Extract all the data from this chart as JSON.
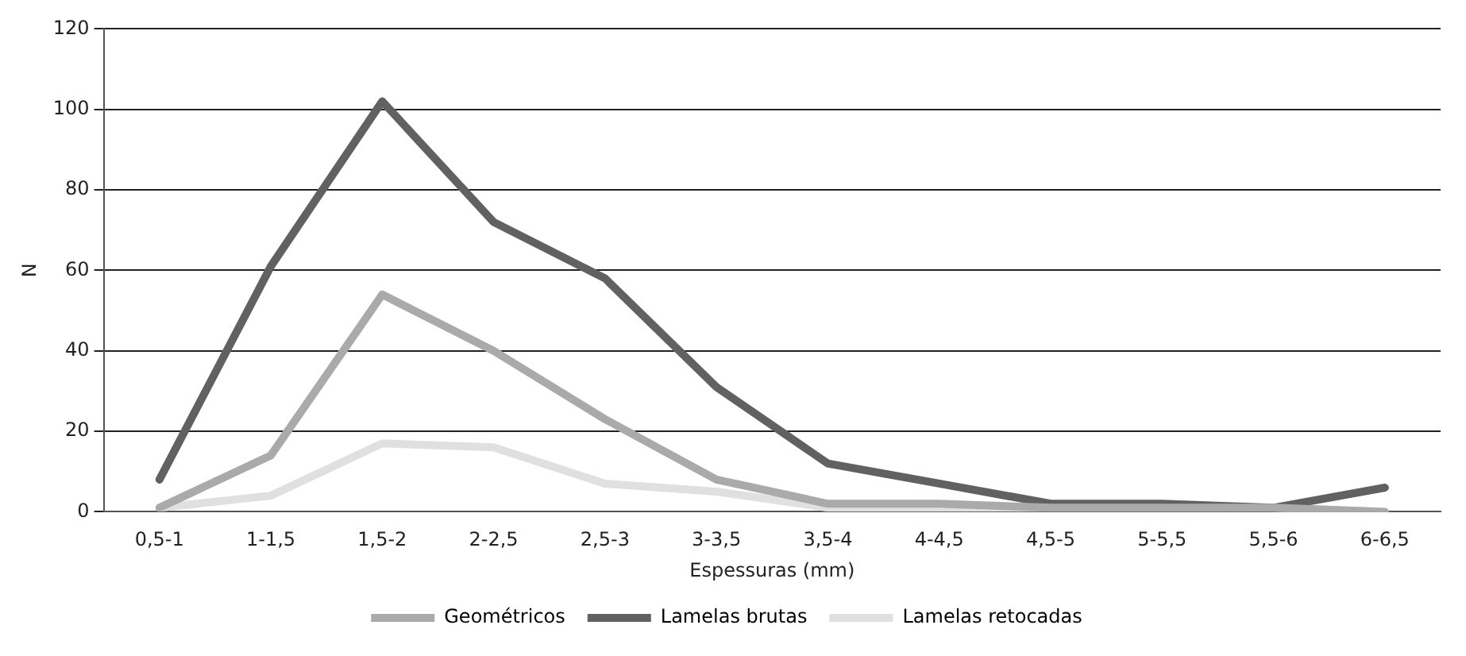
{
  "chart_data": {
    "type": "line",
    "xlabel": "Espessuras (mm)",
    "ylabel": "N",
    "categories": [
      "0,5-1",
      "1-1,5",
      "1,5-2",
      "2-2,5",
      "2,5-3",
      "3-3,5",
      "3,5-4",
      "4-4,5",
      "4,5-5",
      "5-5,5",
      "5,5-6",
      "6-6,5"
    ],
    "series": [
      {
        "name": "Geométricos",
        "color": "#aaaaaa",
        "values": [
          1,
          14,
          54,
          40,
          23,
          8,
          2,
          2,
          1,
          1,
          1,
          0
        ]
      },
      {
        "name": "Lamelas brutas",
        "color": "#616161",
        "values": [
          8,
          61,
          102,
          72,
          58,
          31,
          12,
          7,
          2,
          2,
          1,
          6
        ]
      },
      {
        "name": "Lamelas retocadas",
        "color": "#e0e0e0",
        "values": [
          1,
          4,
          17,
          16,
          7,
          5,
          1,
          1,
          1,
          1,
          1,
          0
        ]
      }
    ],
    "ylim": [
      0,
      120
    ],
    "yticks": [
      0,
      20,
      40,
      60,
      80,
      100,
      120
    ],
    "grid": "y",
    "legend": "bottom",
    "marker": "none",
    "line_style": "solid"
  }
}
